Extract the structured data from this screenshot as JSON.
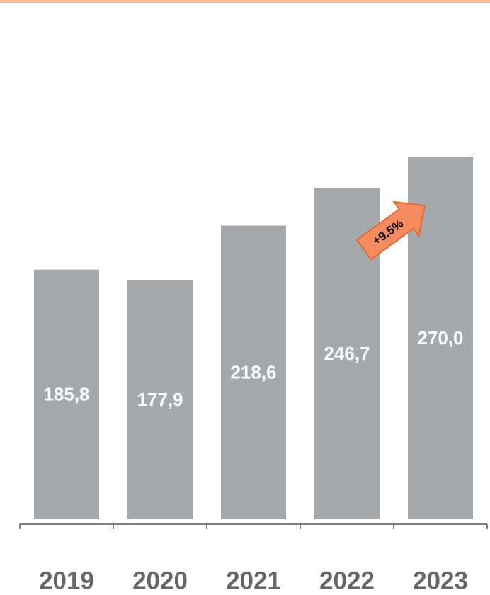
{
  "chart_data": {
    "type": "bar",
    "categories": [
      "2019",
      "2020",
      "2021",
      "2022",
      "2023"
    ],
    "values": [
      185.8,
      177.9,
      218.6,
      246.7,
      270.0
    ],
    "value_labels": [
      "185,8",
      "177,9",
      "218,6",
      "246,7",
      "270,0"
    ],
    "color": "#a5a9ab",
    "annotation": "+9.5%"
  }
}
